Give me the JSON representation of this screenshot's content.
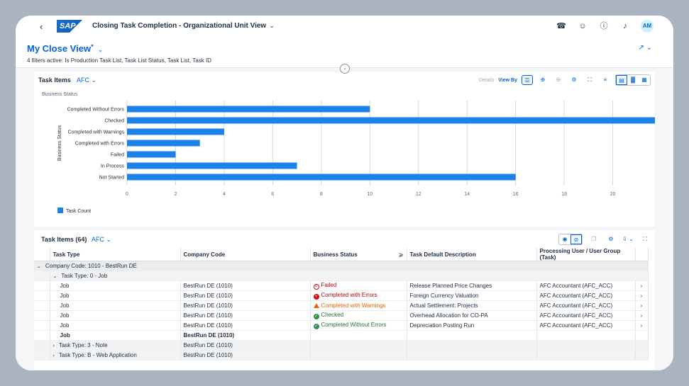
{
  "shell": {
    "logo": "SAP",
    "app_title": "Closing Task Completion - Organizational Unit View",
    "avatar": "AM",
    "icons": [
      "headset-icon",
      "chat-icon",
      "help-icon",
      "bell-icon"
    ]
  },
  "header": {
    "variant": "My Close View",
    "variant_marker": "*",
    "filters_text": "4 filters active: Is Production Task List, Task List Status, Task List, Task ID"
  },
  "chart_card": {
    "title": "Task Items",
    "variant": "AFC",
    "toolbar": {
      "details": "Details",
      "view_by": "View By"
    }
  },
  "chart_data": {
    "type": "bar",
    "orientation": "horizontal",
    "title": "Business Status",
    "ylabel": "Business Status",
    "xlabel": "",
    "categories": [
      "Completed Without Errors",
      "Checked",
      "Completed with Warnings",
      "Completed with Errors",
      "Failed",
      "In Process",
      "Not Started"
    ],
    "series": [
      {
        "name": "Task Count",
        "values": [
          10,
          22,
          4,
          3,
          2,
          7,
          16
        ]
      }
    ],
    "xlim": [
      0,
      22
    ],
    "xticks": [
      0,
      2,
      4,
      6,
      8,
      10,
      12,
      14,
      16,
      18,
      20,
      22
    ],
    "grid": true,
    "legend": "bottom-left",
    "bar_color": "#1c82e8"
  },
  "table_card": {
    "title": "Task Items (64)",
    "variant": "AFC",
    "columns": [
      "Task Type",
      "Company Code",
      "Business Status",
      "Task Default Description",
      "Processing User / User Group (Task)"
    ],
    "group_company": "Company Code: 1010 - BestRun DE",
    "group_type0": "Task Type: 0 - Job",
    "rows": [
      {
        "type": "Job",
        "company": "BestRun DE (1010)",
        "status": "Failed",
        "desc": "Release Planned Price Changes",
        "user": "AFC Accountant (AFC_ACC)"
      },
      {
        "type": "Job",
        "company": "BestRun DE (1010)",
        "status": "Completed with Errors",
        "desc": "Foreign Currency Valuation",
        "user": "AFC Accountant (AFC_ACC)"
      },
      {
        "type": "Job",
        "company": "BestRun DE (1010)",
        "status": "Completed with Warnings",
        "desc": "Actual Settlement: Projects",
        "user": "AFC Accountant (AFC_ACC)"
      },
      {
        "type": "Job",
        "company": "BestRun DE (1010)",
        "status": "Checked",
        "desc": "Overhead Allocation for CO-PA",
        "user": "AFC Accountant (AFC_ACC)"
      },
      {
        "type": "Job",
        "company": "BestRun DE (1010)",
        "status": "Completed Without Errors",
        "desc": "Depreciation Posting Run",
        "user": "AFC Accountant (AFC_ACC)"
      }
    ],
    "subtotal": {
      "type": "Job",
      "company": "BestRun DE (1010)"
    },
    "group_type3": {
      "label": "Task Type: 3 - Note",
      "company": "BestRun DE (1010)"
    },
    "group_typeB": {
      "label": "Task Type: B - Web Application",
      "company": "BestRun DE (1010)"
    }
  }
}
